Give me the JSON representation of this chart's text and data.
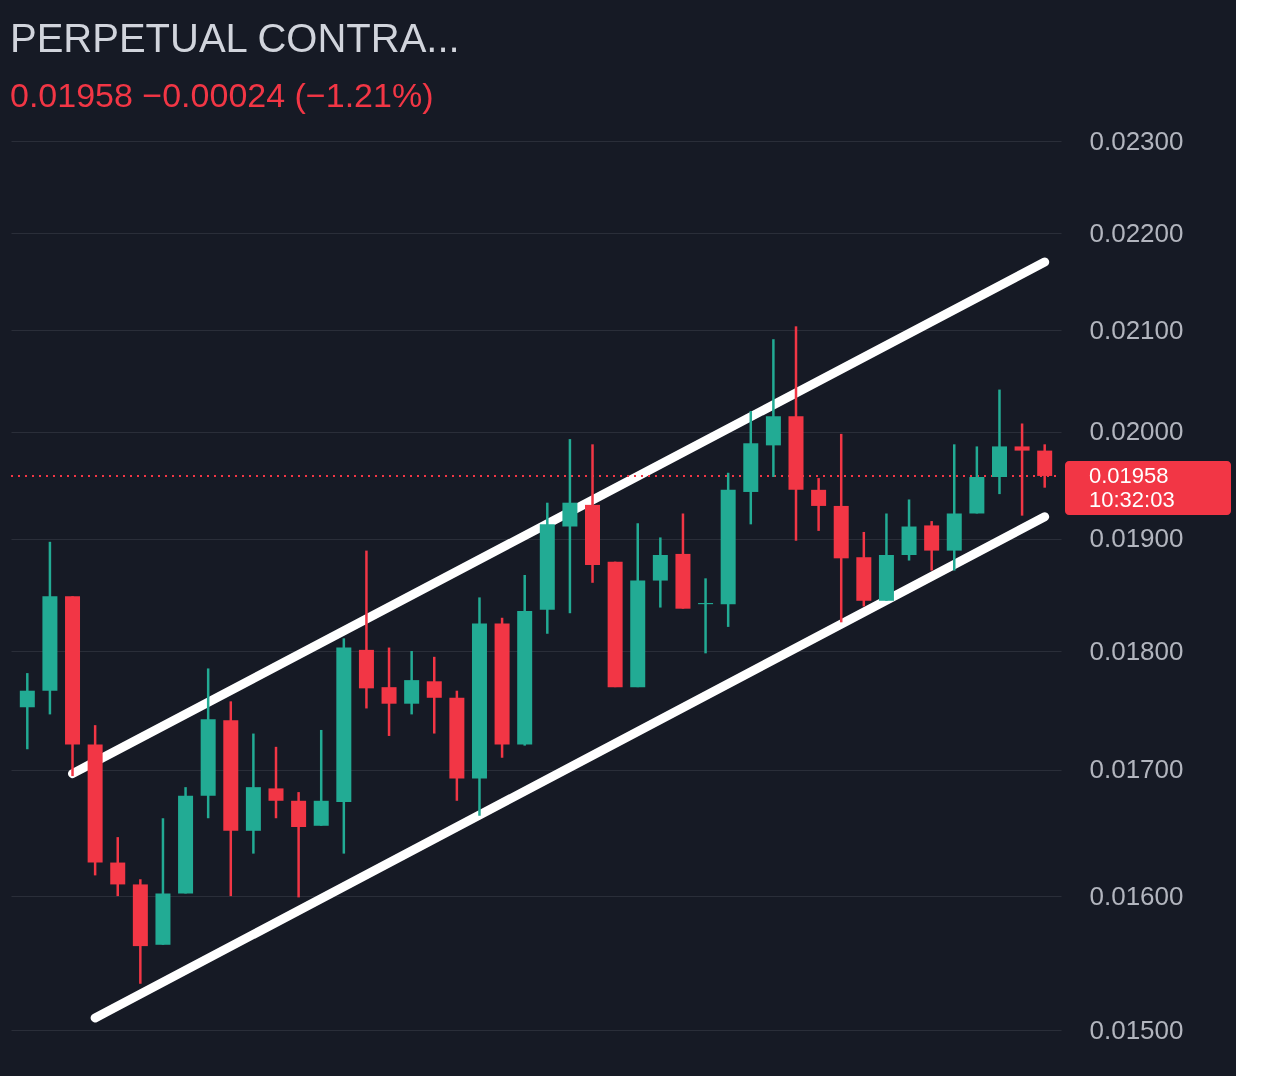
{
  "chart_data": {
    "type": "candlestick",
    "title": "PERPETUAL CONTRA...",
    "subtitle": "0.01958 −0.00024 (−1.21%)",
    "categories": [
      null,
      null,
      null,
      null,
      null,
      null,
      null,
      null,
      null,
      null,
      null,
      null,
      null,
      null,
      null,
      null,
      null,
      null,
      null,
      null,
      null,
      null,
      null,
      null,
      null,
      null,
      null,
      null,
      null,
      null,
      null,
      null,
      null,
      null,
      null,
      null,
      null,
      null,
      null,
      null,
      null,
      null,
      null,
      null,
      null,
      null
    ],
    "ohlc": [
      [
        0.01752,
        0.01781,
        0.01717,
        0.01766
      ],
      [
        0.01766,
        0.01897,
        0.01746,
        0.01848
      ],
      [
        0.01848,
        0.01848,
        0.01695,
        0.01721
      ],
      [
        0.01721,
        0.01737,
        0.01616,
        0.01626
      ],
      [
        0.01626,
        0.01646,
        0.016,
        0.01609
      ],
      [
        0.01609,
        0.01613,
        0.01534,
        0.01562
      ],
      [
        0.01563,
        0.01661,
        0.01563,
        0.01602
      ],
      [
        0.01602,
        0.01686,
        0.01602,
        0.01679
      ],
      [
        0.01679,
        0.01785,
        0.01661,
        0.01742
      ],
      [
        0.01741,
        0.01757,
        0.016,
        0.01651
      ],
      [
        0.01651,
        0.0173,
        0.01633,
        0.01686
      ],
      [
        0.01685,
        0.01719,
        0.01661,
        0.01675
      ],
      [
        0.01675,
        0.01682,
        0.01599,
        0.01654
      ],
      [
        0.01655,
        0.01733,
        0.01655,
        0.01675
      ],
      [
        0.01674,
        0.01811,
        0.01633,
        0.01803
      ],
      [
        0.01801,
        0.01889,
        0.01751,
        0.01768
      ],
      [
        0.01769,
        0.01803,
        0.01728,
        0.01755
      ],
      [
        0.01755,
        0.018,
        0.01746,
        0.01775
      ],
      [
        0.01774,
        0.01795,
        0.0173,
        0.0176
      ],
      [
        0.0176,
        0.01766,
        0.01675,
        0.01693
      ],
      [
        0.01693,
        0.01847,
        0.01663,
        0.01824
      ],
      [
        0.01824,
        0.01829,
        0.0171,
        0.01721
      ],
      [
        0.01721,
        0.01867,
        0.0172,
        0.01835
      ],
      [
        0.01836,
        0.01933,
        0.01815,
        0.01913
      ],
      [
        0.01911,
        0.01993,
        0.01833,
        0.01933
      ],
      [
        0.01931,
        0.01988,
        0.0186,
        0.01876
      ],
      [
        0.01879,
        0.01879,
        0.01769,
        0.01769
      ],
      [
        0.01769,
        0.01914,
        0.01769,
        0.01862
      ],
      [
        0.01862,
        0.01901,
        0.01838,
        0.01885
      ],
      [
        0.01886,
        0.01923,
        0.01837,
        0.01837
      ],
      [
        0.01841,
        0.01864,
        0.01798,
        0.01842
      ],
      [
        0.01841,
        0.01961,
        0.01821,
        0.01945
      ],
      [
        0.01943,
        0.0202,
        0.01913,
        0.01989
      ],
      [
        0.01987,
        0.02091,
        0.01957,
        0.02015
      ],
      [
        0.02015,
        0.02104,
        0.01898,
        0.01945
      ],
      [
        0.01945,
        0.01956,
        0.01907,
        0.0193
      ],
      [
        0.0193,
        0.01998,
        0.01825,
        0.01882
      ],
      [
        0.01883,
        0.01906,
        0.01839,
        0.01844
      ],
      [
        0.01844,
        0.01923,
        0.01844,
        0.01885
      ],
      [
        0.01885,
        0.01936,
        0.0188,
        0.01911
      ],
      [
        0.01912,
        0.01916,
        0.01871,
        0.01889
      ],
      [
        0.01889,
        0.01988,
        0.01871,
        0.01923
      ],
      [
        0.01923,
        0.01986,
        0.01923,
        0.01957
      ],
      [
        0.01957,
        0.02041,
        0.01941,
        0.01986
      ],
      [
        0.01986,
        0.02008,
        0.01921,
        0.01982
      ],
      [
        0.01982,
        0.01988,
        0.01947,
        0.01958
      ]
    ],
    "colors": [
      "#22ab94",
      "#22ab94",
      "#f23645",
      "#f23645",
      "#f23645",
      "#f23645",
      "#22ab94",
      "#22ab94",
      "#22ab94",
      "#f23645",
      "#22ab94",
      "#f23645",
      "#f23645",
      "#22ab94",
      "#22ab94",
      "#f23645",
      "#f23645",
      "#22ab94",
      "#f23645",
      "#f23645",
      "#22ab94",
      "#f23645",
      "#22ab94",
      "#22ab94",
      "#22ab94",
      "#f23645",
      "#f23645",
      "#22ab94",
      "#22ab94",
      "#f23645",
      "#22ab94",
      "#22ab94",
      "#22ab94",
      "#22ab94",
      "#f23645",
      "#f23645",
      "#f23645",
      "#f23645",
      "#22ab94",
      "#22ab94",
      "#f23645",
      "#22ab94",
      "#22ab94",
      "#22ab94",
      "#f23645",
      "#f23645"
    ],
    "series": [
      {
        "type": "line",
        "color": "#ffffff",
        "values": [
          null,
          null,
          0.01697,
          null,
          null,
          null,
          null,
          null,
          null,
          null,
          null,
          null,
          null,
          null,
          null,
          null,
          null,
          null,
          null,
          null,
          null,
          null,
          null,
          null,
          null,
          null,
          null,
          null,
          null,
          null,
          null,
          null,
          null,
          null,
          null,
          null,
          null,
          null,
          null,
          null,
          null,
          null,
          null,
          null,
          null,
          0.0217
        ]
      },
      {
        "type": "line",
        "color": "#ffffff",
        "values": [
          null,
          null,
          null,
          0.01509,
          null,
          null,
          null,
          null,
          null,
          null,
          null,
          null,
          null,
          null,
          null,
          null,
          null,
          null,
          null,
          null,
          null,
          null,
          null,
          null,
          null,
          null,
          null,
          null,
          null,
          null,
          null,
          null,
          null,
          null,
          null,
          null,
          null,
          null,
          null,
          null,
          null,
          null,
          null,
          null,
          null,
          0.0192
        ]
      }
    ],
    "ylim": [
      0.01471,
      0.023
    ],
    "yticks": [
      {
        "value": 0.015,
        "label": "0.01500"
      },
      {
        "value": 0.016,
        "label": "0.01600"
      },
      {
        "value": 0.017,
        "label": "0.01700"
      },
      {
        "value": 0.018,
        "label": "0.01800"
      },
      {
        "value": 0.019,
        "label": "0.01900"
      },
      {
        "value": 0.02,
        "label": "0.02000"
      },
      {
        "value": 0.021,
        "label": "0.02100"
      },
      {
        "value": 0.022,
        "label": "0.02200"
      },
      {
        "value": 0.023,
        "label": "0.02300"
      }
    ],
    "log": true,
    "grid": "y",
    "tick_labels": "y",
    "ref_lines": [
      {
        "axis": "y",
        "value": 0.01958,
        "label": "0.01958",
        "color": "#f23645",
        "line_style": "dotted"
      }
    ],
    "annotations": [
      "10:32:03"
    ]
  }
}
